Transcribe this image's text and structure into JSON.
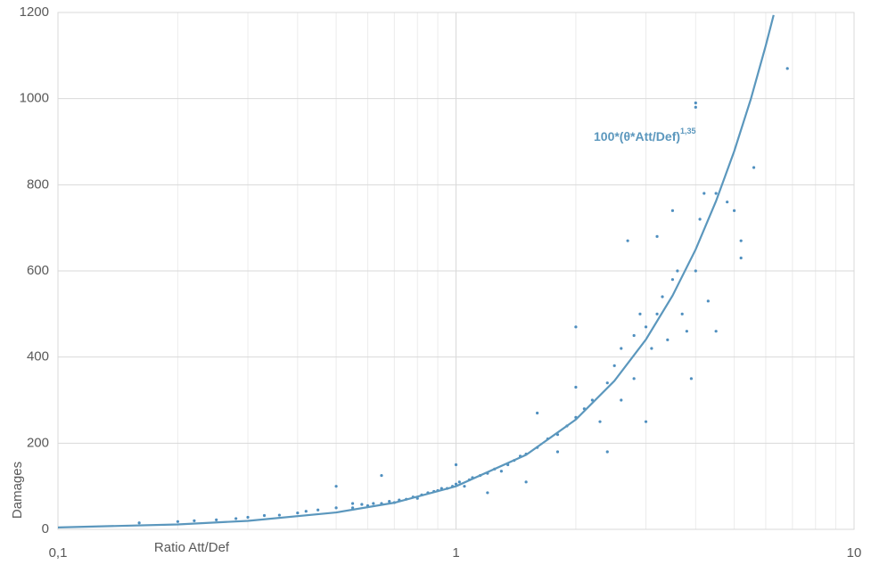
{
  "chart_data": {
    "type": "scatter",
    "xlabel": "Ratio Att/Def",
    "ylabel": "Damages",
    "annotation": "100*(θ*Att/Def)",
    "annotation_exponent": "1,35",
    "xlog": true,
    "grid": true,
    "xlim": [
      0.1,
      10
    ],
    "ylim": [
      0,
      1200
    ],
    "xticks": [
      {
        "value": 0.1,
        "label": "0,1"
      },
      1,
      10
    ],
    "yticks": [
      0,
      200,
      400,
      600,
      800,
      1000,
      1200
    ],
    "series": [
      {
        "kind": "points",
        "color": "#4f8fbf",
        "x": [
          0.16,
          0.2,
          0.22,
          0.25,
          0.28,
          0.3,
          0.33,
          0.36,
          0.4,
          0.42,
          0.45,
          0.5,
          0.55,
          0.55,
          0.58,
          0.6,
          0.62,
          0.65,
          0.68,
          0.7,
          0.72,
          0.75,
          0.78,
          0.8,
          0.82,
          0.85,
          0.88,
          0.9,
          0.92,
          0.95,
          0.98,
          1.0,
          1.02,
          1.05,
          1.08,
          1.1,
          1.15,
          1.2,
          1.25,
          1.3,
          1.35,
          1.4,
          1.45,
          1.5,
          1.6,
          1.7,
          1.8,
          1.9,
          2.0,
          2.0,
          2.0,
          2.1,
          2.2,
          2.3,
          2.4,
          2.5,
          2.6,
          2.6,
          2.7,
          2.8,
          2.8,
          2.9,
          3.0,
          3.1,
          3.2,
          3.2,
          3.3,
          3.4,
          3.5,
          3.5,
          3.6,
          3.7,
          3.8,
          3.9,
          4.0,
          4.0,
          4.1,
          4.2,
          4.3,
          4.5,
          4.5,
          4.8,
          5.0,
          5.2,
          5.2,
          5.6,
          6.8,
          1.0,
          0.65,
          0.5,
          1.6,
          1.8,
          2.4,
          3.0,
          4.0,
          1.2,
          1.5
        ],
        "values": [
          15,
          18,
          20,
          22,
          25,
          28,
          32,
          33,
          38,
          42,
          45,
          50,
          50,
          60,
          58,
          55,
          60,
          60,
          65,
          62,
          68,
          70,
          75,
          72,
          80,
          85,
          88,
          90,
          95,
          95,
          100,
          105,
          110,
          100,
          115,
          120,
          125,
          130,
          140,
          135,
          150,
          160,
          170,
          175,
          190,
          210,
          220,
          240,
          260,
          330,
          470,
          280,
          300,
          250,
          340,
          380,
          420,
          300,
          670,
          450,
          350,
          500,
          470,
          420,
          680,
          500,
          540,
          440,
          740,
          580,
          600,
          500,
          460,
          350,
          980,
          600,
          720,
          780,
          530,
          780,
          460,
          760,
          740,
          670,
          630,
          840,
          1070,
          150,
          125,
          100,
          270,
          180,
          180,
          250,
          990,
          85,
          110
        ]
      },
      {
        "kind": "curve",
        "color": "#5b97bd",
        "x": [
          0.1,
          0.2,
          0.3,
          0.5,
          0.7,
          1,
          1.5,
          2,
          2.5,
          3,
          3.5,
          4,
          4.5,
          5,
          5.5,
          6,
          6.28
        ],
        "values": [
          4.47,
          11.4,
          19.7,
          39.2,
          61.8,
          100,
          172.9,
          254.9,
          344.6,
          440.7,
          542.7,
          649.8,
          762,
          878,
          998,
          1123,
          1194
        ]
      }
    ]
  }
}
